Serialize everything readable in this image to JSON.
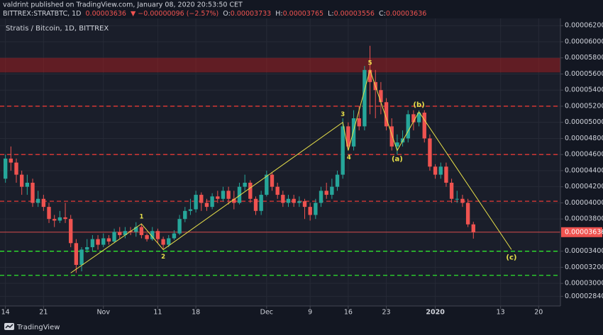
{
  "header": {
    "publisher": "valdrint published on TradingView.com, January 08, 2020 20:53:50 CET",
    "symbol": "BITTREX:STRATBTC, 1D",
    "price": "0.00003636",
    "change": "▼ −0.00000096 (−2.57%)",
    "ohlc": [
      {
        "label": "O:",
        "value": "0.00003733"
      },
      {
        "label": "H:",
        "value": "0.00003765"
      },
      {
        "label": "L:",
        "value": "0.00003556"
      },
      {
        "label": "C:",
        "value": "0.00003636"
      }
    ]
  },
  "footer": {
    "brand": "TradingView"
  },
  "chart_data": {
    "type": "candlestick",
    "title": "Stratis / Bitcoin, 1D, BITTREX",
    "up_color": "#26a69a",
    "down_color": "#ef5350",
    "grid": true,
    "xlim": [
      "2019-10-13",
      "2020-01-24"
    ],
    "xticks": [
      {
        "value": "2019-10-14",
        "label": "14"
      },
      {
        "value": "2019-10-21",
        "label": "21"
      },
      {
        "value": "2019-11-01",
        "label": "Nov"
      },
      {
        "value": "2019-11-11",
        "label": "11"
      },
      {
        "value": "2019-11-18",
        "label": "18"
      },
      {
        "value": "2019-12-01",
        "label": "Dec"
      },
      {
        "value": "2019-12-09",
        "label": "9"
      },
      {
        "value": "2019-12-16",
        "label": "16"
      },
      {
        "value": "2019-12-23",
        "label": "23"
      },
      {
        "value": "2020-01-01",
        "label": "2020"
      },
      {
        "value": "2020-01-13",
        "label": "13"
      },
      {
        "value": "2020-01-20",
        "label": "20"
      }
    ],
    "ylim": [
      2.72e-05,
      6.29e-05
    ],
    "yticks": [
      {
        "value": 6.2e-05,
        "label": "0.00006200"
      },
      {
        "value": 6e-05,
        "label": "0.00006000"
      },
      {
        "value": 5.8e-05,
        "label": "0.00005800"
      },
      {
        "value": 5.6e-05,
        "label": "0.00005600"
      },
      {
        "value": 5.4e-05,
        "label": "0.00005400"
      },
      {
        "value": 5.2e-05,
        "label": "0.00005200"
      },
      {
        "value": 5e-05,
        "label": "0.00005000"
      },
      {
        "value": 4.8e-05,
        "label": "0.00004800"
      },
      {
        "value": 4.6e-05,
        "label": "0.00004600"
      },
      {
        "value": 4.4e-05,
        "label": "0.00004400"
      },
      {
        "value": 4.2e-05,
        "label": "0.00004200"
      },
      {
        "value": 4e-05,
        "label": "0.00004000"
      },
      {
        "value": 3.8e-05,
        "label": "0.00003800"
      },
      {
        "value": 3.4e-05,
        "label": "0.00003400"
      },
      {
        "value": 3.2e-05,
        "label": "0.00003200"
      },
      {
        "value": 3e-05,
        "label": "0.00003000"
      },
      {
        "value": 2.84e-05,
        "label": "0.00002840"
      }
    ],
    "last_price": {
      "value": 3.636e-05,
      "label": "0.00003636",
      "color": "#ef5350"
    },
    "band": {
      "from": 5.62e-05,
      "to": 5.8e-05,
      "color": "#b71c1c"
    },
    "levels": [
      {
        "value": 5.2e-05,
        "color": "#e53935"
      },
      {
        "value": 4.6e-05,
        "color": "#e53935"
      },
      {
        "value": 4.02e-05,
        "color": "#e53935"
      },
      {
        "value": 3.4e-05,
        "color": "#2ee62e"
      },
      {
        "value": 3.1e-05,
        "color": "#2ee62e"
      }
    ],
    "waves": {
      "color": "#e8e04a",
      "x": [
        "2019-10-26",
        "2019-11-08",
        "2019-11-12",
        "2019-12-15",
        "2019-12-16",
        "2019-12-20",
        "2019-12-25",
        "2019-12-29",
        "2020-01-15"
      ],
      "y": [
        3.13e-05,
        3.74e-05,
        3.42e-05,
        5e-05,
        4.65e-05,
        5.65e-05,
        4.65e-05,
        5.13e-05,
        3.42e-05
      ],
      "labels": [
        null,
        "1",
        "2",
        "3",
        "4",
        "5",
        "(a)",
        "(b)",
        "(c)"
      ]
    },
    "x": [
      "2019-10-14",
      "2019-10-15",
      "2019-10-16",
      "2019-10-17",
      "2019-10-18",
      "2019-10-19",
      "2019-10-20",
      "2019-10-21",
      "2019-10-22",
      "2019-10-23",
      "2019-10-24",
      "2019-10-25",
      "2019-10-26",
      "2019-10-27",
      "2019-10-28",
      "2019-10-29",
      "2019-10-30",
      "2019-10-31",
      "2019-11-01",
      "2019-11-02",
      "2019-11-03",
      "2019-11-04",
      "2019-11-05",
      "2019-11-06",
      "2019-11-07",
      "2019-11-08",
      "2019-11-09",
      "2019-11-10",
      "2019-11-11",
      "2019-11-12",
      "2019-11-13",
      "2019-11-14",
      "2019-11-15",
      "2019-11-16",
      "2019-11-17",
      "2019-11-18",
      "2019-11-19",
      "2019-11-20",
      "2019-11-21",
      "2019-11-22",
      "2019-11-23",
      "2019-11-24",
      "2019-11-25",
      "2019-11-26",
      "2019-11-27",
      "2019-11-28",
      "2019-11-29",
      "2019-11-30",
      "2019-12-01",
      "2019-12-02",
      "2019-12-03",
      "2019-12-04",
      "2019-12-05",
      "2019-12-06",
      "2019-12-07",
      "2019-12-08",
      "2019-12-09",
      "2019-12-10",
      "2019-12-11",
      "2019-12-12",
      "2019-12-13",
      "2019-12-14",
      "2019-12-15",
      "2019-12-16",
      "2019-12-17",
      "2019-12-18",
      "2019-12-19",
      "2019-12-20",
      "2019-12-21",
      "2019-12-22",
      "2019-12-23",
      "2019-12-24",
      "2019-12-25",
      "2019-12-26",
      "2019-12-27",
      "2019-12-28",
      "2019-12-29",
      "2019-12-30",
      "2019-12-31",
      "2020-01-01",
      "2020-01-02",
      "2020-01-03",
      "2020-01-04",
      "2020-01-05",
      "2020-01-06",
      "2020-01-07",
      "2020-01-08"
    ],
    "open": [
      4.3e-05,
      4.55e-05,
      4.5e-05,
      4.35e-05,
      4.2e-05,
      4.25e-05,
      4e-05,
      4.05e-05,
      3.95e-05,
      3.8e-05,
      3.78e-05,
      3.82e-05,
      3.8e-05,
      3.5e-05,
      3.23e-05,
      3.42e-05,
      3.45e-05,
      3.55e-05,
      3.48e-05,
      3.56e-05,
      3.52e-05,
      3.64e-05,
      3.6e-05,
      3.65e-05,
      3.64e-05,
      3.7e-05,
      3.6e-05,
      3.55e-05,
      3.65e-05,
      3.55e-05,
      3.48e-05,
      3.56e-05,
      3.62e-05,
      3.8e-05,
      3.9e-05,
      3.92e-05,
      4.1e-05,
      4e-05,
      3.95e-05,
      4.08e-05,
      4.05e-05,
      4.15e-05,
      4.05e-05,
      4e-05,
      4.2e-05,
      4.25e-05,
      4.05e-05,
      3.9e-05,
      4.1e-05,
      4.35e-05,
      4.2e-05,
      4.1e-05,
      4e-05,
      4.05e-05,
      4e-05,
      4.02e-05,
      3.95e-05,
      3.85e-05,
      4e-05,
      4.15e-05,
      4.1e-05,
      4.2e-05,
      4.35e-05,
      4.95e-05,
      4.7e-05,
      5.05e-05,
      4.95e-05,
      5.65e-05,
      5.5e-05,
      5.4e-05,
      5.25e-05,
      4.95e-05,
      4.7e-05,
      4.75e-05,
      4.8e-05,
      5.1e-05,
      5e-05,
      5.12e-05,
      4.8e-05,
      4.45e-05,
      4.35e-05,
      4.45e-05,
      4.25e-05,
      4.05e-05,
      4.05e-05,
      4e-05,
      3.733e-05
    ],
    "high": [
      4.6e-05,
      4.7e-05,
      4.55e-05,
      4.4e-05,
      4.35e-05,
      4.3e-05,
      4.15e-05,
      4.1e-05,
      4e-05,
      3.85e-05,
      3.9e-05,
      4e-05,
      3.85e-05,
      3.55e-05,
      3.45e-05,
      3.55e-05,
      3.6e-05,
      3.6e-05,
      3.62e-05,
      3.6e-05,
      3.68e-05,
      3.7e-05,
      3.7e-05,
      3.7e-05,
      3.76e-05,
      3.74e-05,
      3.62e-05,
      3.7e-05,
      3.68e-05,
      3.58e-05,
      3.6e-05,
      3.66e-05,
      3.85e-05,
      3.95e-05,
      4.05e-05,
      4.15e-05,
      4.13e-05,
      4.05e-05,
      4.12e-05,
      4.15e-05,
      4.2e-05,
      4.2e-05,
      4.15e-05,
      4.25e-05,
      4.35e-05,
      4.28e-05,
      4.08e-05,
      4.15e-05,
      4.4e-05,
      4.38e-05,
      4.25e-05,
      4.15e-05,
      4.1e-05,
      4.1e-05,
      4.08e-05,
      4.05e-05,
      4e-05,
      4.05e-05,
      4.2e-05,
      4.25e-05,
      4.3e-05,
      4.4e-05,
      5.05e-05,
      5e-05,
      5.15e-05,
      5.2e-05,
      5.7e-05,
      5.95e-05,
      5.65e-05,
      5.5e-05,
      5.3e-05,
      5.05e-05,
      4.85e-05,
      4.9e-05,
      5.15e-05,
      5.15e-05,
      5.15e-05,
      5.15e-05,
      4.85e-05,
      4.48e-05,
      4.5e-05,
      4.5e-05,
      4.3e-05,
      4.15e-05,
      4.1e-05,
      4.05e-05,
      3.765e-05
    ],
    "low": [
      4.25e-05,
      4.4e-05,
      4.25e-05,
      4.1e-05,
      4.1e-05,
      3.95e-05,
      3.95e-05,
      3.9e-05,
      3.75e-05,
      3.7e-05,
      3.75e-05,
      3.75e-05,
      3.45e-05,
      3.13e-05,
      3.15e-05,
      3.38e-05,
      3.4e-05,
      3.42e-05,
      3.45e-05,
      3.48e-05,
      3.5e-05,
      3.56e-05,
      3.56e-05,
      3.6e-05,
      3.58e-05,
      3.56e-05,
      3.52e-05,
      3.53e-05,
      3.5e-05,
      3.42e-05,
      3.45e-05,
      3.54e-05,
      3.6e-05,
      3.76e-05,
      3.85e-05,
      3.88e-05,
      3.9e-05,
      3.9e-05,
      3.92e-05,
      4e-05,
      4.02e-05,
      3.98e-05,
      3.92e-05,
      3.98e-05,
      4.15e-05,
      4e-05,
      3.85e-05,
      3.85e-05,
      4.08e-05,
      4.15e-05,
      4.05e-05,
      3.95e-05,
      3.95e-05,
      3.95e-05,
      3.95e-05,
      3.8e-05,
      3.78e-05,
      3.8e-05,
      3.95e-05,
      4.05e-05,
      4.05e-05,
      4.15e-05,
      4.3e-05,
      4.65e-05,
      4.65e-05,
      4.9e-05,
      4.9e-05,
      5.1e-05,
      5.05e-05,
      5.1e-05,
      4.9e-05,
      4.65e-05,
      4.6e-05,
      4.7e-05,
      4.75e-05,
      4.9e-05,
      4.95e-05,
      4.75e-05,
      4.4e-05,
      4.3e-05,
      4.3e-05,
      4.2e-05,
      4e-05,
      4e-05,
      3.95e-05,
      3.7e-05,
      3.556e-05
    ],
    "close": [
      4.55e-05,
      4.5e-05,
      4.35e-05,
      4.2e-05,
      4.25e-05,
      4e-05,
      4.05e-05,
      3.95e-05,
      3.8e-05,
      3.78e-05,
      3.82e-05,
      3.8e-05,
      3.5e-05,
      3.23e-05,
      3.42e-05,
      3.45e-05,
      3.55e-05,
      3.48e-05,
      3.56e-05,
      3.52e-05,
      3.64e-05,
      3.6e-05,
      3.65e-05,
      3.64e-05,
      3.7e-05,
      3.6e-05,
      3.55e-05,
      3.65e-05,
      3.55e-05,
      3.48e-05,
      3.56e-05,
      3.62e-05,
      3.8e-05,
      3.9e-05,
      3.92e-05,
      4.1e-05,
      4e-05,
      3.95e-05,
      4.08e-05,
      4.05e-05,
      4.15e-05,
      4.05e-05,
      4e-05,
      4.2e-05,
      4.25e-05,
      4.05e-05,
      3.9e-05,
      4.1e-05,
      4.35e-05,
      4.2e-05,
      4.1e-05,
      4e-05,
      4.05e-05,
      4e-05,
      4.02e-05,
      3.95e-05,
      3.85e-05,
      4e-05,
      4.15e-05,
      4.1e-05,
      4.2e-05,
      4.35e-05,
      4.95e-05,
      4.7e-05,
      5.05e-05,
      4.95e-05,
      5.65e-05,
      5.5e-05,
      5.4e-05,
      5.25e-05,
      4.95e-05,
      4.7e-05,
      4.75e-05,
      4.8e-05,
      5.1e-05,
      5e-05,
      5.12e-05,
      4.8e-05,
      4.45e-05,
      4.35e-05,
      4.45e-05,
      4.25e-05,
      4.05e-05,
      4.05e-05,
      4e-05,
      3.733e-05,
      3.636e-05
    ]
  }
}
